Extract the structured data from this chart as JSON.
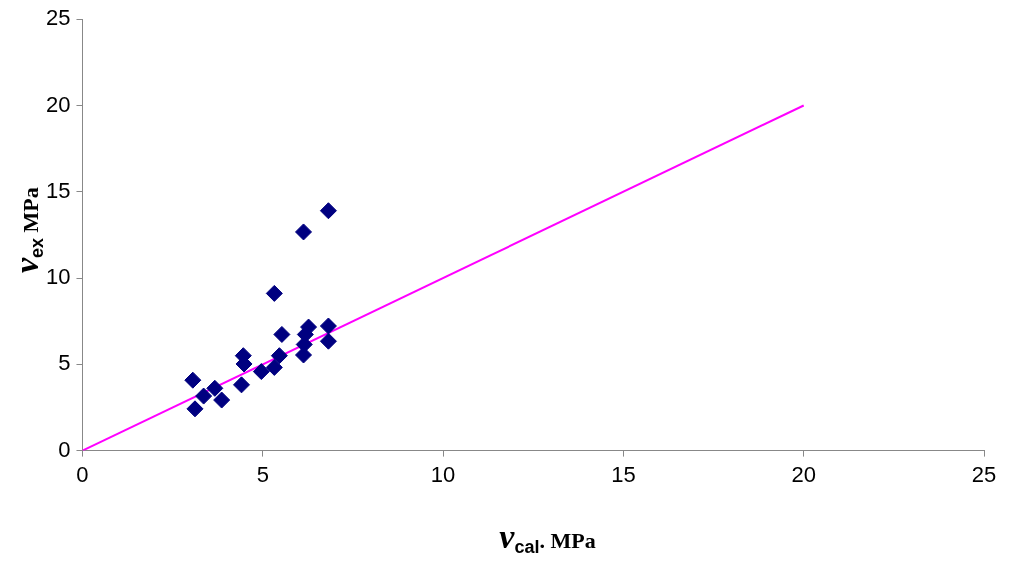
{
  "chart_data": {
    "type": "scatter",
    "xlabel": "v$_{cal}$. MPa",
    "ylabel": "v$_{ex}$ MPa",
    "xlim": [
      0,
      25
    ],
    "xticks": [
      0,
      5,
      10,
      15,
      20,
      25
    ],
    "ylim": [
      0,
      25
    ],
    "yticks": [
      0,
      5,
      10,
      15,
      20,
      25
    ],
    "grid": false,
    "legend": false,
    "marker": "diamond",
    "series": [
      {
        "type": "scatter",
        "color": "#000080",
        "x": [
          3.06,
          3.12,
          3.36,
          3.67,
          3.86,
          4.41,
          4.46,
          4.48,
          4.96,
          5.32,
          5.32,
          5.46,
          5.53,
          6.13,
          6.13,
          6.15,
          6.18,
          6.27,
          6.82,
          6.82,
          6.82
        ],
        "values": [
          4.08,
          2.42,
          3.16,
          3.61,
          2.93,
          3.81,
          5.5,
          5.02,
          4.58,
          9.11,
          4.82,
          5.5,
          6.73,
          12.67,
          5.54,
          6.15,
          6.73,
          7.16,
          13.9,
          7.22,
          6.34
        ]
      },
      {
        "type": "line",
        "color": "#ff00ff",
        "marker": "none",
        "x": [
          0,
          20
        ],
        "values": [
          0,
          20
        ]
      }
    ]
  }
}
